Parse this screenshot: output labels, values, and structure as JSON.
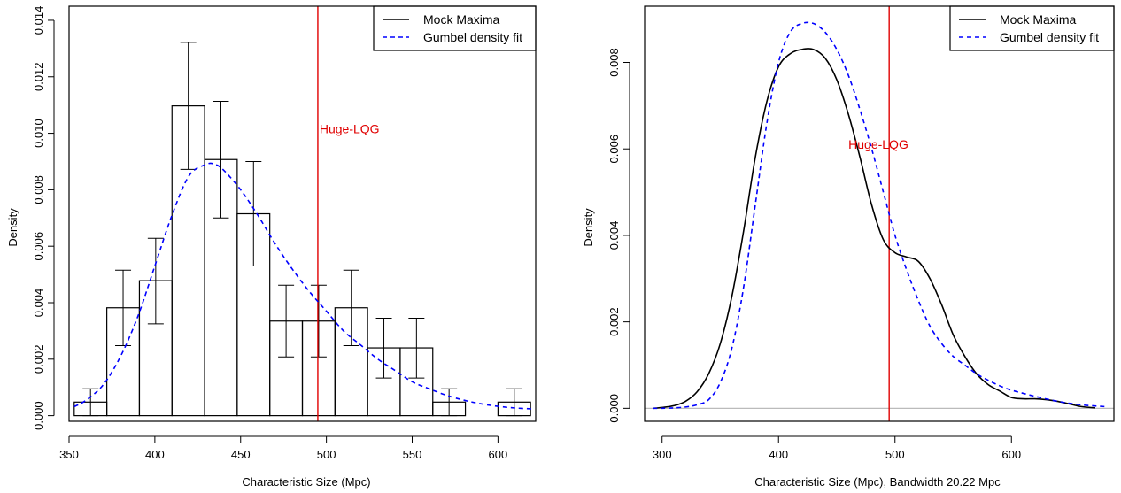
{
  "chart_data": [
    {
      "type": "histogram",
      "xlabel": "Characteristic Size (Mpc)",
      "ylabel": "Density",
      "xlim": [
        350,
        622
      ],
      "ylim": [
        -0.0002,
        0.0145
      ],
      "xticks": [
        350,
        400,
        450,
        500,
        550,
        600
      ],
      "yticks": [
        0.0,
        0.002,
        0.004,
        0.006,
        0.008,
        0.01,
        0.012,
        0.014
      ],
      "ytick_labels": [
        "0.000",
        "0.002",
        "0.004",
        "0.006",
        "0.008",
        "0.010",
        "0.012",
        "0.014"
      ],
      "bins": [
        {
          "x0": 353,
          "x1": 372,
          "y": 0.00048,
          "err_lo": 0.0,
          "err_hi": 0.00095
        },
        {
          "x0": 372,
          "x1": 391,
          "y": 0.00382,
          "err_lo": 0.00248,
          "err_hi": 0.00515
        },
        {
          "x0": 391,
          "x1": 410,
          "y": 0.00478,
          "err_lo": 0.00325,
          "err_hi": 0.00628
        },
        {
          "x0": 410,
          "x1": 429,
          "y": 0.01097,
          "err_lo": 0.00872,
          "err_hi": 0.01322
        },
        {
          "x0": 429,
          "x1": 448,
          "y": 0.00907,
          "err_lo": 0.007,
          "err_hi": 0.01113
        },
        {
          "x0": 448,
          "x1": 467,
          "y": 0.00715,
          "err_lo": 0.0053,
          "err_hi": 0.009
        },
        {
          "x0": 467,
          "x1": 486,
          "y": 0.00335,
          "err_lo": 0.00208,
          "err_hi": 0.00462
        },
        {
          "x0": 486,
          "x1": 505,
          "y": 0.00335,
          "err_lo": 0.00208,
          "err_hi": 0.00462
        },
        {
          "x0": 505,
          "x1": 524,
          "y": 0.00382,
          "err_lo": 0.00248,
          "err_hi": 0.00515
        },
        {
          "x0": 524,
          "x1": 543,
          "y": 0.0024,
          "err_lo": 0.00133,
          "err_hi": 0.00345
        },
        {
          "x0": 543,
          "x1": 562,
          "y": 0.0024,
          "err_lo": 0.00133,
          "err_hi": 0.00345
        },
        {
          "x0": 562,
          "x1": 581,
          "y": 0.00048,
          "err_lo": 0.0,
          "err_hi": 0.00095
        },
        {
          "x0": 581,
          "x1": 600,
          "y": 0.0
        },
        {
          "x0": 600,
          "x1": 619,
          "y": 0.00048,
          "err_lo": 0.0,
          "err_hi": 0.00095
        }
      ],
      "series": [
        {
          "name": "Gumbel density fit",
          "style": "dashed",
          "color": "#0000ff",
          "x": [
            353,
            360,
            370,
            380,
            390,
            400,
            410,
            420,
            430,
            435,
            440,
            450,
            460,
            470,
            480,
            490,
            500,
            510,
            520,
            530,
            540,
            550,
            560,
            570,
            580,
            590,
            600,
            610,
            620
          ],
          "y": [
            0.00032,
            0.00055,
            0.0011,
            0.0021,
            0.0035,
            0.0053,
            0.0071,
            0.0085,
            0.0089,
            0.0089,
            0.0087,
            0.008,
            0.0071,
            0.0061,
            0.0052,
            0.0044,
            0.0037,
            0.003,
            0.0025,
            0.002,
            0.0016,
            0.0012,
            0.00095,
            0.00072,
            0.00055,
            0.00042,
            0.00033,
            0.00027,
            0.00024
          ]
        }
      ],
      "legend": {
        "position": "top-right",
        "entries": [
          {
            "label": "Mock Maxima",
            "style": "solid",
            "color": "#000000"
          },
          {
            "label": "Gumbel density fit",
            "style": "dashed",
            "color": "#0000ff"
          }
        ]
      },
      "vline": {
        "x": 495,
        "color": "#e00000"
      },
      "annotation": {
        "text": "Huge-LQG",
        "x": 496,
        "y": 0.01,
        "color": "#e00000"
      }
    },
    {
      "type": "line",
      "xlabel": "Characteristic Size (Mpc), Bandwidth 20.22 Mpc",
      "ylabel": "Density",
      "xlim": [
        285,
        688
      ],
      "ylim": [
        -0.0003,
        0.0093
      ],
      "xticks": [
        300,
        400,
        500,
        600
      ],
      "yticks": [
        0.0,
        0.002,
        0.004,
        0.006,
        0.008
      ],
      "ytick_labels": [
        "0.000",
        "0.002",
        "0.004",
        "0.006",
        "0.008"
      ],
      "baseline": {
        "y": 0,
        "color": "#bbbbbb"
      },
      "series": [
        {
          "name": "Mock Maxima",
          "style": "solid",
          "color": "#000000",
          "x": [
            292,
            300,
            310,
            320,
            330,
            340,
            350,
            360,
            370,
            380,
            390,
            400,
            410,
            420,
            430,
            440,
            450,
            460,
            470,
            480,
            490,
            500,
            510,
            520,
            530,
            540,
            550,
            560,
            570,
            580,
            590,
            600,
            610,
            620,
            630,
            640,
            650,
            660,
            672
          ],
          "y": [
            0.0,
            2e-05,
            6e-05,
            0.00016,
            0.00038,
            0.0008,
            0.0015,
            0.0026,
            0.0041,
            0.0058,
            0.0071,
            0.0079,
            0.0082,
            0.0083,
            0.0083,
            0.0081,
            0.0076,
            0.0068,
            0.0058,
            0.0047,
            0.0039,
            0.0036,
            0.0035,
            0.0034,
            0.003,
            0.0024,
            0.0017,
            0.0012,
            0.0008,
            0.00055,
            0.0004,
            0.00025,
            0.00022,
            0.00022,
            0.0002,
            0.00016,
            0.0001,
            4e-05,
            1e-05
          ]
        },
        {
          "name": "Gumbel density fit",
          "style": "dashed",
          "color": "#0000ff",
          "x": [
            292,
            300,
            310,
            320,
            330,
            340,
            350,
            360,
            370,
            380,
            390,
            400,
            410,
            420,
            430,
            440,
            450,
            460,
            470,
            480,
            490,
            500,
            510,
            520,
            530,
            540,
            550,
            560,
            570,
            580,
            590,
            600,
            620,
            640,
            660,
            680
          ],
          "y": [
            0.0,
            0.0,
            1e-05,
            3e-05,
            8e-05,
            0.0002,
            0.0006,
            0.0014,
            0.0028,
            0.0047,
            0.0066,
            0.008,
            0.0087,
            0.0089,
            0.0089,
            0.0087,
            0.0083,
            0.0077,
            0.0069,
            0.006,
            0.005,
            0.004,
            0.0032,
            0.0025,
            0.0019,
            0.0015,
            0.0012,
            0.001,
            0.0008,
            0.00065,
            0.00052,
            0.00042,
            0.00028,
            0.00016,
            8e-05,
            4e-05
          ]
        }
      ],
      "legend": {
        "position": "top-right",
        "entries": [
          {
            "label": "Mock Maxima",
            "style": "solid",
            "color": "#000000"
          },
          {
            "label": "Gumbel density fit",
            "style": "dashed",
            "color": "#0000ff"
          }
        ]
      },
      "vline": {
        "x": 495,
        "color": "#e00000"
      },
      "annotation": {
        "text": "Huge-LQG",
        "x": 460,
        "y": 0.006,
        "color": "#e00000"
      }
    }
  ]
}
